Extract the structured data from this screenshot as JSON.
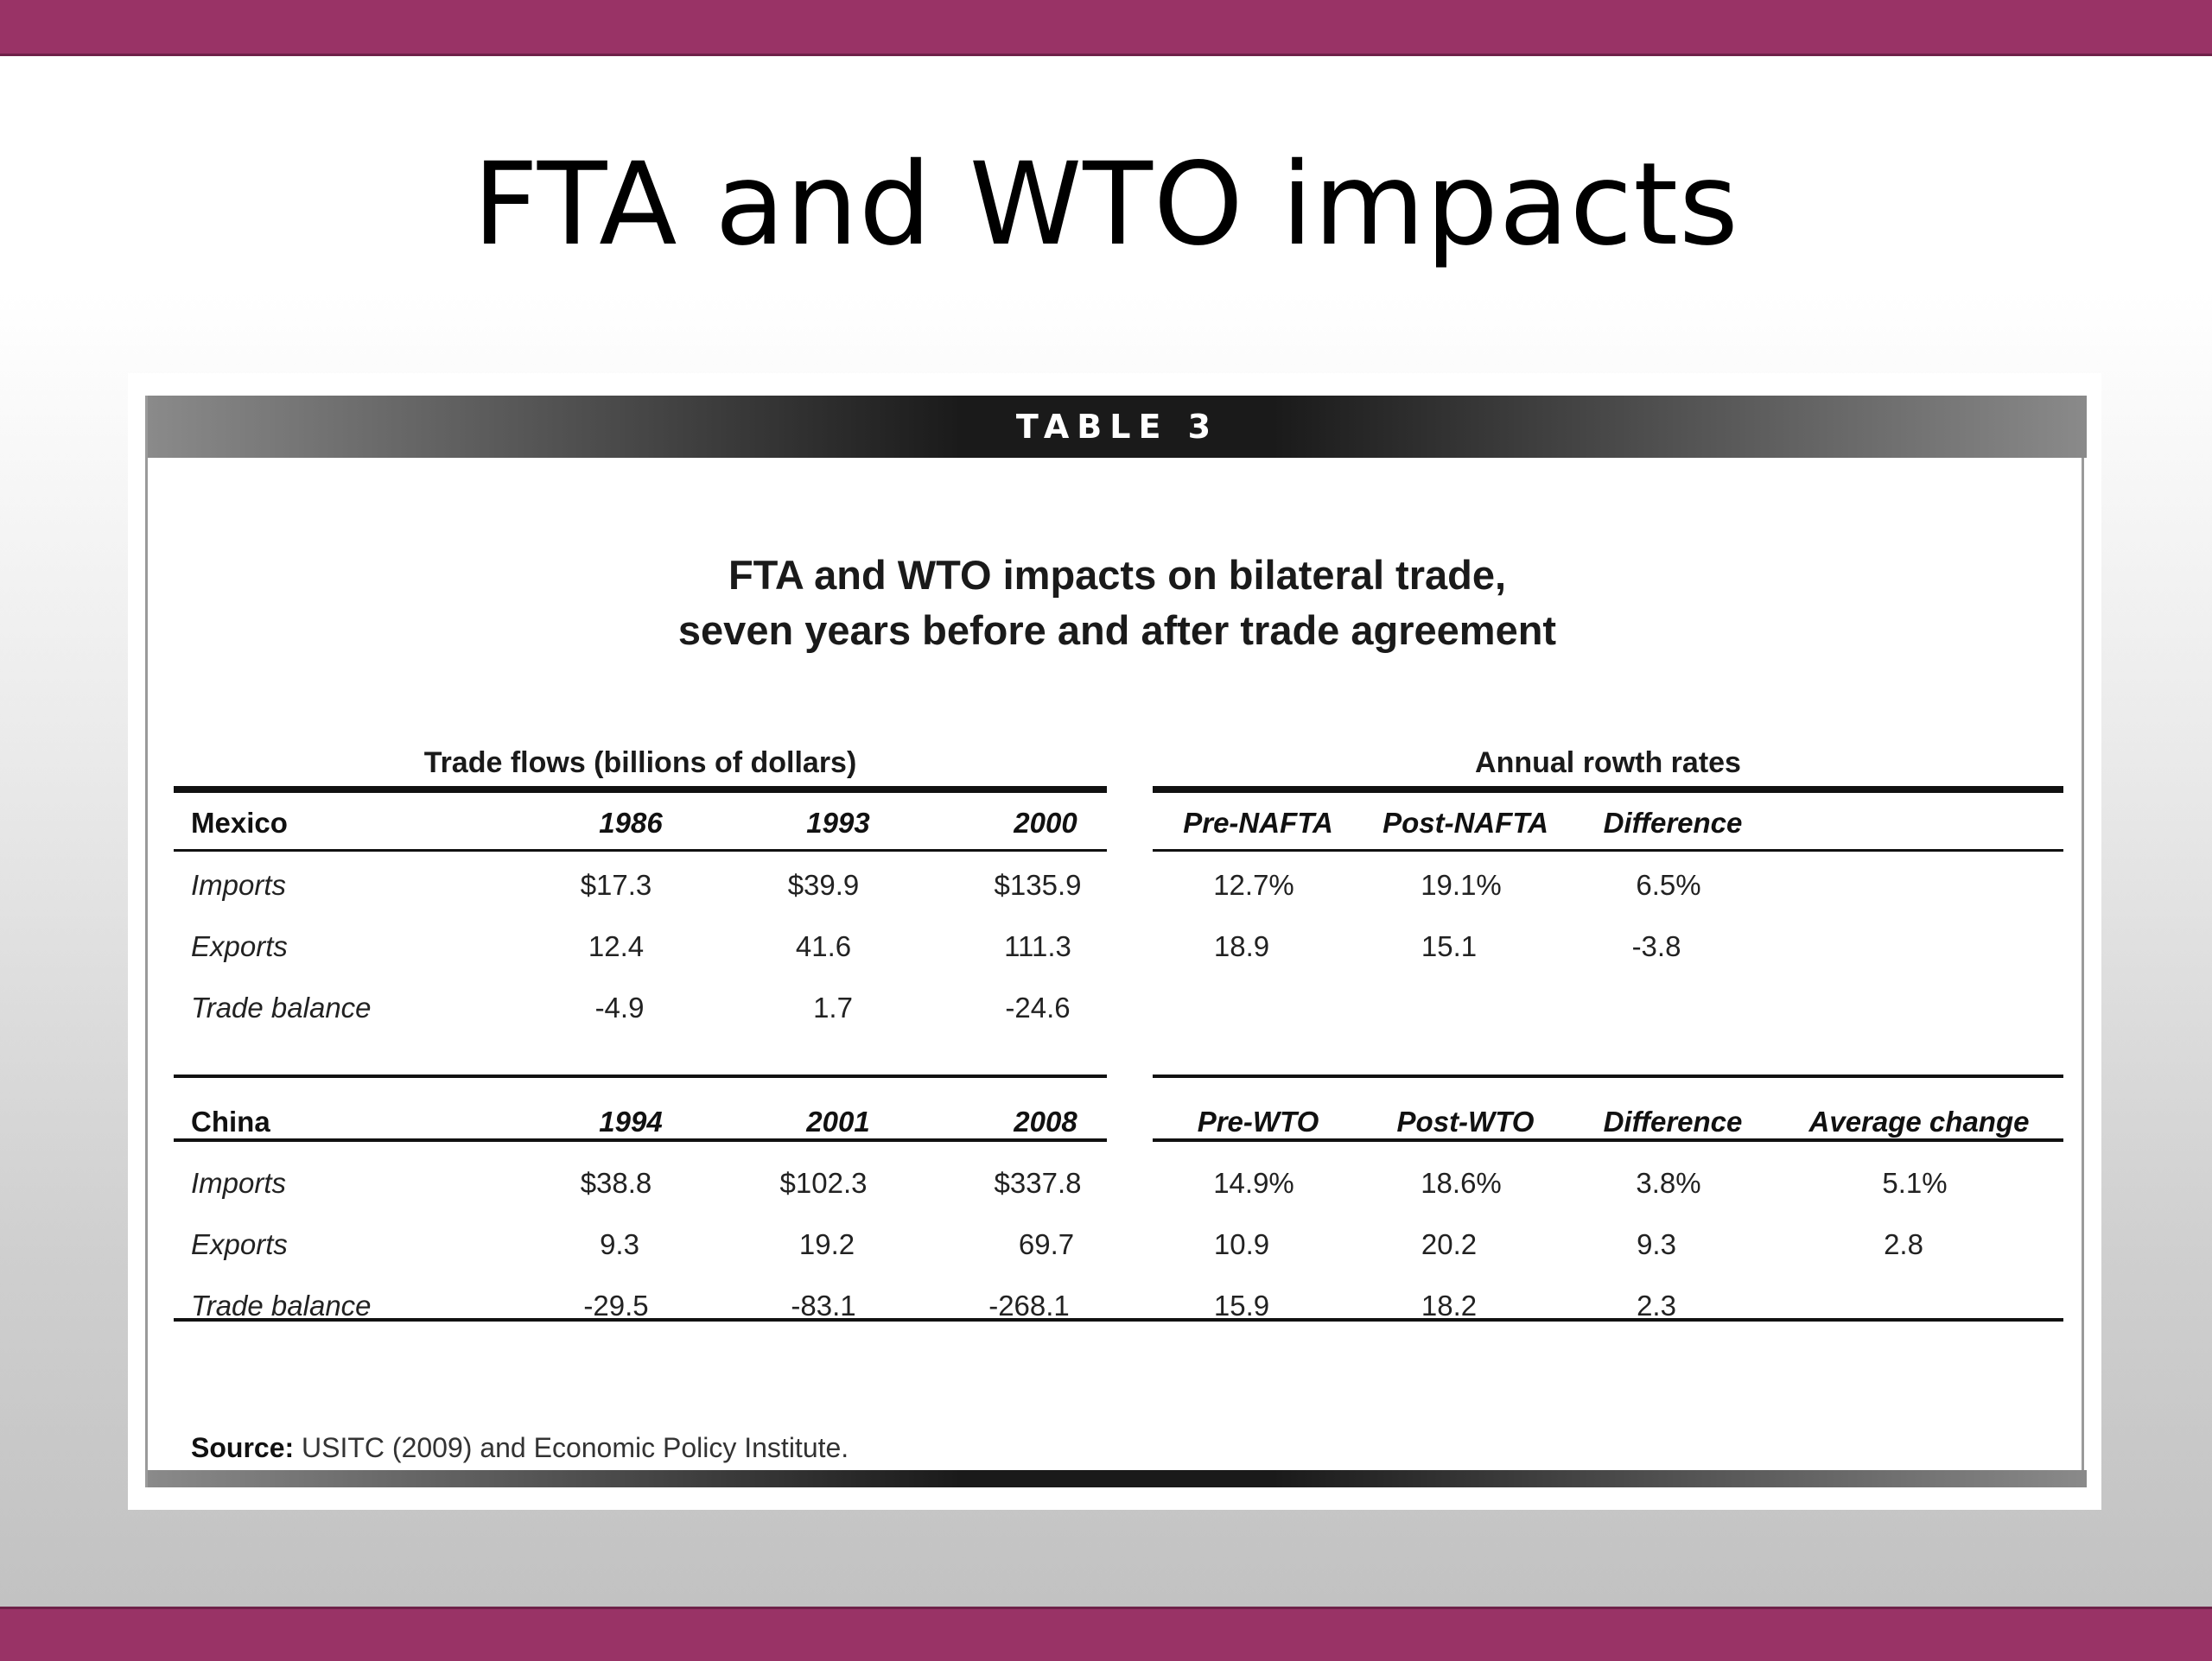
{
  "slide": {
    "title": "FTA and WTO impacts"
  },
  "table": {
    "label": "TABLE 3",
    "title_line1": "FTA and WTO impacts on bilateral trade,",
    "title_line2": "seven years before and after trade agreement",
    "group_left": "Trade flows (billions of dollars)",
    "group_right": "Annual rowth rates",
    "mexico": {
      "header": [
        "Mexico",
        "1986",
        "1993",
        "2000",
        "Pre-NAFTA",
        "Post-NAFTA",
        "Difference"
      ],
      "rows": [
        [
          "Imports",
          "$17.3",
          "$39.9",
          "$135.9",
          "12.7%",
          "19.1%",
          "6.5%"
        ],
        [
          "Exports",
          "12.4",
          "41.6",
          "111.3",
          "18.9",
          "15.1",
          "-3.8"
        ],
        [
          "Trade balance",
          "-4.9",
          "1.7",
          "-24.6",
          "",
          "",
          ""
        ]
      ]
    },
    "china": {
      "header": [
        "China",
        "1994",
        "2001",
        "2008",
        "Pre-WTO",
        "Post-WTO",
        "Difference",
        "Average change"
      ],
      "rows": [
        [
          "Imports",
          "$38.8",
          "$102.3",
          "$337.8",
          "14.9%",
          "18.6%",
          "3.8%",
          "5.1%"
        ],
        [
          "Exports",
          "9.3",
          "19.2",
          "69.7",
          "10.9",
          "20.2",
          "9.3",
          "2.8"
        ],
        [
          "Trade balance",
          "-29.5",
          "-83.1",
          "-268.1",
          "15.9",
          "18.2",
          "2.3",
          ""
        ]
      ]
    },
    "source_label": "Source:",
    "source_text": "USITC (2009) and Economic Policy Institute."
  }
}
